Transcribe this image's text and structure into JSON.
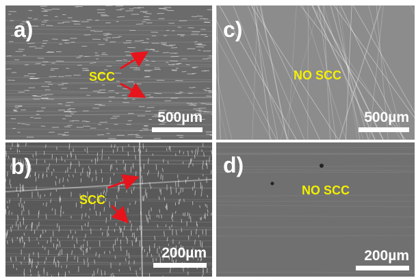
{
  "panels": [
    {
      "label": "a)",
      "annotation": "SCC",
      "scale_bar": "500µm"
    },
    {
      "label": "c)",
      "annotation": "NO SCC",
      "scale_bar": "500µm"
    },
    {
      "label": "b)",
      "annotation": "SCC",
      "scale_bar": "200µm"
    },
    {
      "label": "d)",
      "annotation": "NO SCC",
      "scale_bar": "200µm"
    }
  ]
}
